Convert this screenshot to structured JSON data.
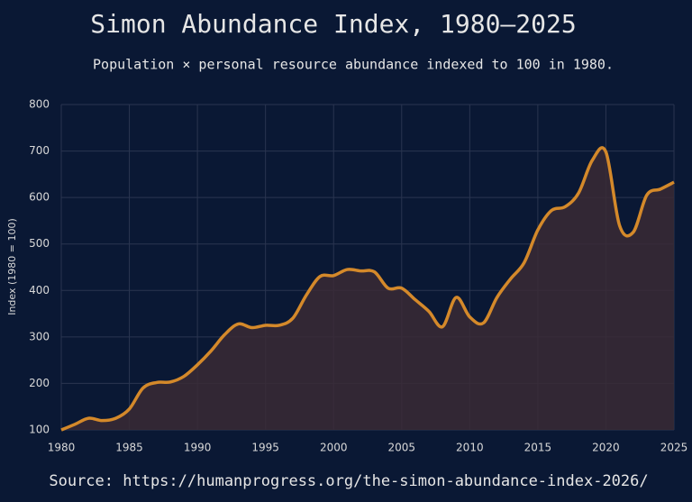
{
  "chart_data": {
    "type": "line",
    "title": "Simon Abundance Index, 1980–2025",
    "subtitle": "Population × personal resource abundance indexed to 100 in 1980.",
    "y_label": "Index (1980 = 100)",
    "source": "Source: https://humanprogress.org/the-simon-abundance-index-2026/",
    "x": [
      1980,
      1981,
      1982,
      1983,
      1984,
      1985,
      1986,
      1987,
      1988,
      1989,
      1990,
      1991,
      1992,
      1993,
      1994,
      1995,
      1996,
      1997,
      1998,
      1999,
      2000,
      2001,
      2002,
      2003,
      2004,
      2005,
      2006,
      2007,
      2008,
      2009,
      2010,
      2011,
      2012,
      2013,
      2014,
      2015,
      2016,
      2017,
      2018,
      2019,
      2020,
      2021,
      2022,
      2023,
      2024,
      2025
    ],
    "series": [
      {
        "name": "Simon Abundance Index",
        "color": "#d4892a",
        "values": [
          100,
          112,
          125,
          120,
          125,
          145,
          190,
          202,
          203,
          215,
          240,
          270,
          305,
          328,
          320,
          325,
          325,
          340,
          390,
          430,
          432,
          445,
          442,
          440,
          405,
          405,
          380,
          355,
          322,
          385,
          343,
          330,
          385,
          425,
          460,
          530,
          572,
          580,
          610,
          680,
          698,
          540,
          525,
          605,
          618,
          633
        ]
      }
    ],
    "area_color": "#3a2a35",
    "xlim": [
      1980,
      2025
    ],
    "xticks": [
      1980,
      1985,
      1990,
      1995,
      2000,
      2005,
      2010,
      2015,
      2020,
      2025
    ],
    "ylim": [
      100,
      800
    ],
    "yticks": [
      100,
      200,
      300,
      400,
      500,
      600,
      700,
      800
    ],
    "grid": true
  }
}
